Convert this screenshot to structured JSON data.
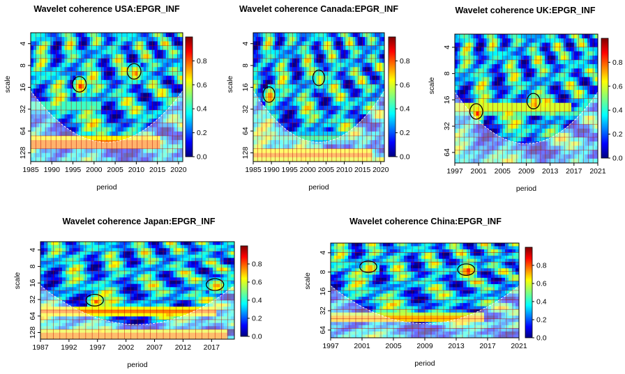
{
  "chart_data": [
    {
      "type": "heatmap",
      "title": "Wavelet coherence USA:EPGR_INF",
      "xlabel": "period",
      "ylabel": "scale",
      "x_ticks": [
        "1985",
        "1990",
        "1995",
        "2000",
        "2005",
        "2010",
        "2015",
        "2020"
      ],
      "x_range": [
        1985,
        2021
      ],
      "y_ticks": [
        "4",
        "8",
        "16",
        "32",
        "64",
        "128"
      ],
      "y_scale": "log2",
      "colorbar": {
        "ticks": [
          "0.0",
          "0.2",
          "0.4",
          "0.6",
          "0.8"
        ],
        "range": [
          0,
          1
        ]
      },
      "grid": true
    },
    {
      "type": "heatmap",
      "title": "Wavelet coherence Canada:EPGR_INF",
      "xlabel": "period",
      "ylabel": "scale",
      "x_ticks": [
        "1985",
        "1990",
        "1995",
        "2000",
        "2005",
        "2010",
        "2015",
        "2020"
      ],
      "x_range": [
        1985,
        2021
      ],
      "y_ticks": [
        "4",
        "8",
        "16",
        "32",
        "64",
        "128"
      ],
      "y_scale": "log2",
      "colorbar": {
        "ticks": [
          "0.0",
          "0.2",
          "0.4",
          "0.6",
          "0.8"
        ],
        "range": [
          0,
          1
        ]
      },
      "grid": true
    },
    {
      "type": "heatmap",
      "title": "Wavelet coherence UK:EPGR_INF",
      "xlabel": "period",
      "ylabel": "scale",
      "x_ticks": [
        "1997",
        "2001",
        "2005",
        "2009",
        "2013",
        "2017",
        "2021"
      ],
      "x_range": [
        1997,
        2021
      ],
      "y_ticks": [
        "4",
        "8",
        "16",
        "32",
        "64"
      ],
      "y_scale": "log2",
      "colorbar": {
        "ticks": [
          "0.0",
          "0.2",
          "0.4",
          "0.6",
          "0.8"
        ],
        "range": [
          0,
          1
        ]
      },
      "grid": true
    },
    {
      "type": "heatmap",
      "title": "Wavelet coherence Japan:EPGR_INF",
      "xlabel": "period",
      "ylabel": "scale",
      "x_ticks": [
        "1987",
        "1992",
        "1997",
        "2002",
        "2007",
        "2012",
        "2017"
      ],
      "x_range": [
        1987,
        2021
      ],
      "y_ticks": [
        "4",
        "8",
        "16",
        "32",
        "64",
        "128"
      ],
      "y_scale": "log2",
      "colorbar": {
        "ticks": [
          "0.0",
          "0.2",
          "0.4",
          "0.6",
          "0.8"
        ],
        "range": [
          0,
          1
        ]
      },
      "grid": true
    },
    {
      "type": "heatmap",
      "title": "Wavelet coherence China:EPGR_INF",
      "xlabel": "period",
      "ylabel": "scale",
      "x_ticks": [
        "1997",
        "2001",
        "2005",
        "2009",
        "2013",
        "2017",
        "2021"
      ],
      "x_range": [
        1997,
        2021
      ],
      "y_ticks": [
        "4",
        "8",
        "16",
        "32",
        "64"
      ],
      "y_scale": "log2",
      "colorbar": {
        "ticks": [
          "0.0",
          "0.2",
          "0.4",
          "0.6",
          "0.8"
        ],
        "range": [
          0,
          1
        ]
      },
      "grid": true
    }
  ]
}
